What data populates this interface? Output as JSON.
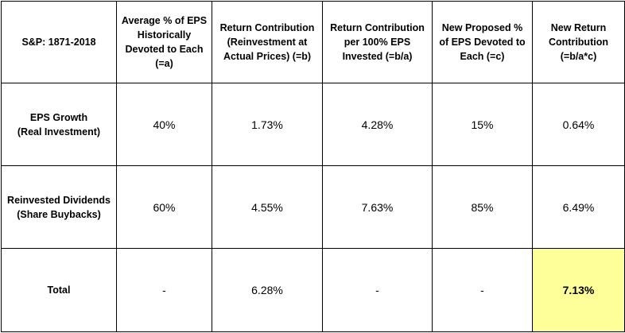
{
  "table": {
    "header": {
      "col0": "S&P: 1871-2018",
      "col1": [
        "Average % of EPS",
        "Historically",
        "Devoted to Each",
        "(=a)"
      ],
      "col2": [
        "Return Contribution",
        "(Reinvestment at",
        "Actual Prices) (=b)"
      ],
      "col3": [
        "Return Contribution",
        "per 100% EPS",
        "Invested (=b/a)"
      ],
      "col4": [
        "New Proposed %",
        "of EPS Devoted to",
        "Each (=c)"
      ],
      "col5": [
        "New Return",
        "Contribution",
        "(=b/a*c)"
      ]
    },
    "rows": [
      {
        "label": [
          "EPS Growth",
          "(Real Investment)"
        ],
        "values": [
          "40%",
          "1.73%",
          "4.28%",
          "15%",
          "0.64%"
        ]
      },
      {
        "label": [
          "Reinvested Dividends",
          "(Share Buybacks)"
        ],
        "values": [
          "60%",
          "4.55%",
          "7.63%",
          "85%",
          "6.49%"
        ]
      },
      {
        "label": [
          "Total"
        ],
        "values": [
          "-",
          "6.28%",
          "-",
          "-",
          "7.13%"
        ]
      }
    ],
    "highlight_color": "#ffff99"
  }
}
